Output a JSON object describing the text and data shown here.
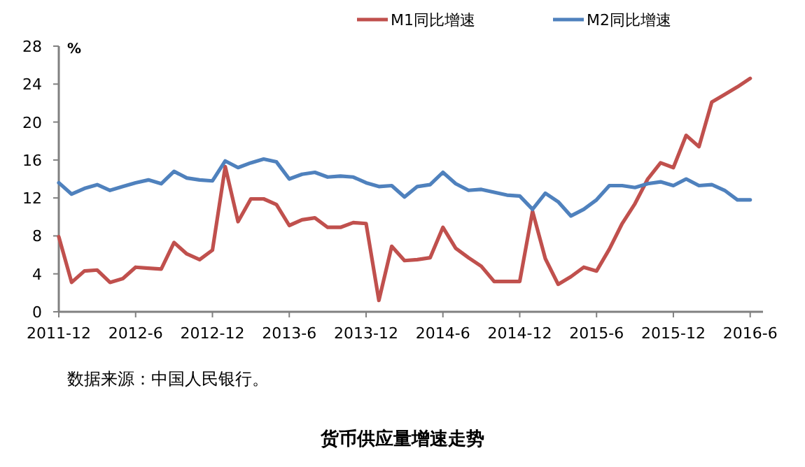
{
  "chart_data": {
    "type": "line",
    "title": "货币供应量增速走势",
    "ylabel": "%",
    "annotations": [
      "数据来源：中国人民银行。"
    ],
    "x": [
      "2011-12",
      "2012-01",
      "2012-02",
      "2012-03",
      "2012-04",
      "2012-05",
      "2012-06",
      "2012-07",
      "2012-08",
      "2012-09",
      "2012-10",
      "2012-11",
      "2012-12",
      "2013-01",
      "2013-02",
      "2013-03",
      "2013-04",
      "2013-05",
      "2013-06",
      "2013-07",
      "2013-08",
      "2013-09",
      "2013-10",
      "2013-11",
      "2013-12",
      "2014-01",
      "2014-02",
      "2014-03",
      "2014-04",
      "2014-05",
      "2014-06",
      "2014-07",
      "2014-08",
      "2014-09",
      "2014-10",
      "2014-11",
      "2014-12",
      "2015-01",
      "2015-02",
      "2015-03",
      "2015-04",
      "2015-05",
      "2015-06",
      "2015-07",
      "2015-08",
      "2015-09",
      "2015-10",
      "2015-11",
      "2015-12",
      "2016-01",
      "2016-02",
      "2016-03",
      "2016-04",
      "2016-05",
      "2016-06"
    ],
    "series": [
      {
        "name": "M1同比增速",
        "color": "#c0504d",
        "values": [
          7.9,
          3.1,
          4.3,
          4.4,
          3.1,
          3.5,
          4.7,
          4.6,
          4.5,
          7.3,
          6.1,
          5.5,
          6.5,
          15.3,
          9.5,
          11.9,
          11.9,
          11.3,
          9.1,
          9.7,
          9.9,
          8.9,
          8.9,
          9.4,
          9.3,
          1.2,
          6.9,
          5.4,
          5.5,
          5.7,
          8.9,
          6.7,
          5.7,
          4.8,
          3.2,
          3.2,
          3.2,
          10.6,
          5.6,
          2.9,
          3.7,
          4.7,
          4.3,
          6.6,
          9.3,
          11.4,
          14.0,
          15.7,
          15.2,
          18.6,
          17.4,
          22.1,
          22.9,
          23.7,
          24.6
        ]
      },
      {
        "name": "M2同比增速",
        "color": "#4f81bd",
        "values": [
          13.6,
          12.4,
          13.0,
          13.4,
          12.8,
          13.2,
          13.6,
          13.9,
          13.5,
          14.8,
          14.1,
          13.9,
          13.8,
          15.9,
          15.2,
          15.7,
          16.1,
          15.8,
          14.0,
          14.5,
          14.7,
          14.2,
          14.3,
          14.2,
          13.6,
          13.2,
          13.3,
          12.1,
          13.2,
          13.4,
          14.7,
          13.5,
          12.8,
          12.9,
          12.6,
          12.3,
          12.2,
          10.8,
          12.5,
          11.6,
          10.1,
          10.8,
          11.8,
          13.3,
          13.3,
          13.1,
          13.5,
          13.7,
          13.3,
          14.0,
          13.3,
          13.4,
          12.8,
          11.8,
          11.8
        ]
      }
    ],
    "xlim": [
      "2011-12",
      "2016-07"
    ],
    "xticks": [
      "2011-12",
      "2012-6",
      "2012-12",
      "2013-6",
      "2013-12",
      "2014-6",
      "2014-12",
      "2015-6",
      "2015-12",
      "2016-6"
    ],
    "ylim": [
      0,
      28
    ],
    "yticks": [
      0,
      4,
      8,
      12,
      16,
      20,
      24,
      28
    ],
    "grid": false,
    "legend": "top right",
    "marker": "none",
    "line_style": "solid"
  }
}
